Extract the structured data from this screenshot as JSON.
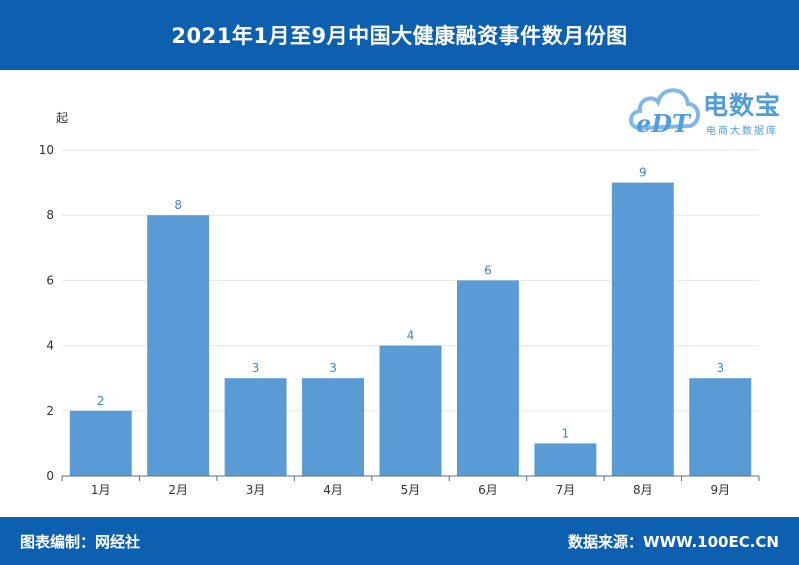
{
  "header": {
    "title": "2021年1月至9月中国大健康融资事件数月份图"
  },
  "logo": {
    "mark": "eDT",
    "brand": "电数宝",
    "subtitle": "电商大数据库"
  },
  "footer": {
    "left": "图表编制：网经社",
    "right": "数据来源：WWW.100EC.CN"
  },
  "colors": {
    "header_bg": "#0d5fb0",
    "bar": "#5b9bd5",
    "label": "#3f86c8"
  },
  "chart_data": {
    "type": "bar",
    "title": "2021年1月至9月中国大健康融资事件数月份图",
    "ylabel": "起",
    "xlabel": "",
    "categories": [
      "1月",
      "2月",
      "3月",
      "4月",
      "5月",
      "6月",
      "7月",
      "8月",
      "9月"
    ],
    "values": [
      2,
      8,
      3,
      3,
      4,
      6,
      1,
      9,
      3
    ],
    "ylim": [
      0,
      10
    ],
    "yticks": [
      0,
      2,
      4,
      6,
      8,
      10
    ],
    "grid": true,
    "data_labels": true
  }
}
